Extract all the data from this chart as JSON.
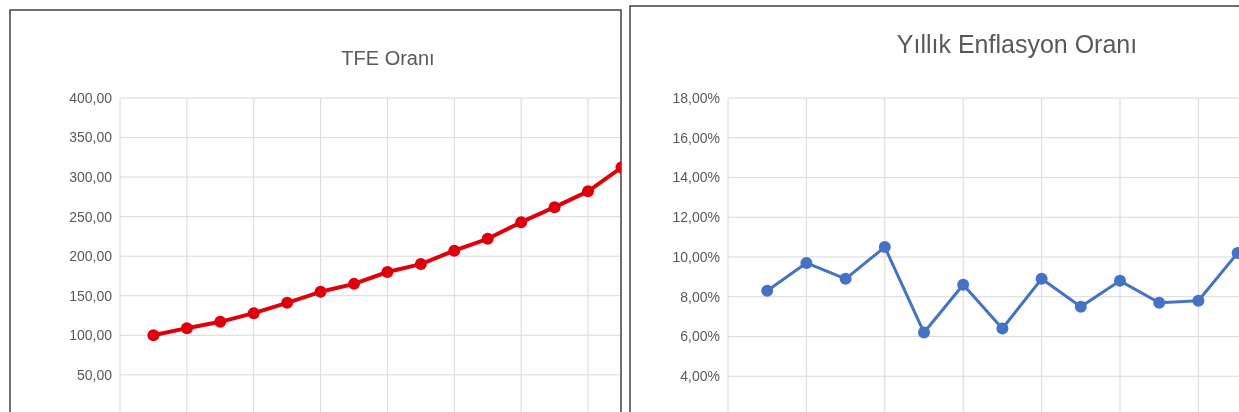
{
  "chart_data": [
    {
      "type": "line",
      "title": "TFE Oranı",
      "categories": [
        null,
        null,
        null,
        null,
        null,
        null,
        null,
        null,
        null,
        null,
        null,
        null,
        null,
        null,
        null
      ],
      "series": [
        {
          "color": "#e0000b",
          "values": [
            100,
            109,
            117,
            128,
            141,
            155,
            165,
            180,
            190,
            207,
            222,
            243,
            262,
            282,
            312
          ]
        }
      ],
      "ylim": [
        3,
        400
      ],
      "yticks": [
        {
          "value": 50,
          "label": "50,00"
        },
        {
          "value": 100,
          "label": "100,00"
        },
        {
          "value": 150,
          "label": "150,00"
        },
        {
          "value": 200,
          "label": "200,00"
        },
        {
          "value": 250,
          "label": "250,00"
        },
        {
          "value": 300,
          "label": "300,00"
        },
        {
          "value": 350,
          "label": "350,00"
        },
        {
          "value": 400,
          "label": "400,00"
        }
      ],
      "grid": true,
      "marker": "circle"
    },
    {
      "type": "line",
      "title": "Yıllık Enflasyon Oranı",
      "categories": [
        null,
        null,
        null,
        null,
        null,
        null,
        null,
        null,
        null,
        null,
        null,
        null,
        null
      ],
      "series": [
        {
          "color": "#4472c4",
          "values": [
            8.3,
            9.7,
            8.9,
            10.5,
            6.2,
            8.6,
            6.4,
            8.9,
            7.5,
            8.8,
            7.7,
            7.8,
            10.2
          ]
        }
      ],
      "ylim": [
        2.2,
        18
      ],
      "yticks": [
        {
          "value": 4,
          "label": "4,00%"
        },
        {
          "value": 6,
          "label": "6,00%"
        },
        {
          "value": 8,
          "label": "8,00%"
        },
        {
          "value": 10,
          "label": "10,00%"
        },
        {
          "value": 12,
          "label": "12,00%"
        },
        {
          "value": 14,
          "label": "14,00%"
        },
        {
          "value": 16,
          "label": "16,00%"
        },
        {
          "value": 18,
          "label": "18,00%"
        }
      ],
      "grid": true,
      "marker": "circle"
    }
  ]
}
